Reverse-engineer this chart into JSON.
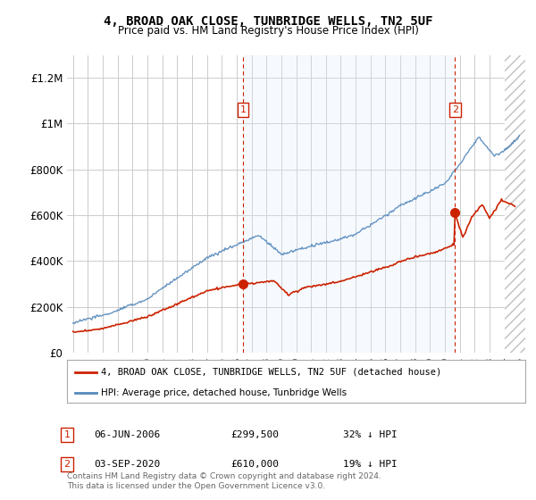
{
  "title": "4, BROAD OAK CLOSE, TUNBRIDGE WELLS, TN2 5UF",
  "subtitle": "Price paid vs. HM Land Registry's House Price Index (HPI)",
  "ylim": [
    0,
    1300000
  ],
  "yticks": [
    0,
    200000,
    400000,
    600000,
    800000,
    1000000,
    1200000
  ],
  "ytick_labels": [
    "£0",
    "£200K",
    "£400K",
    "£600K",
    "£800K",
    "£1M",
    "£1.2M"
  ],
  "hpi_color": "#5588bb",
  "price_color": "#cc2200",
  "vline_color": "#cc2200",
  "shade_color": "#ddeeff",
  "grid_color": "#cccccc",
  "background_color": "#ffffff",
  "transaction1_date": 2006.44,
  "transaction1_price": 299500,
  "transaction2_date": 2020.67,
  "transaction2_price": 610000,
  "legend_line1": "4, BROAD OAK CLOSE, TUNBRIDGE WELLS, TN2 5UF (detached house)",
  "legend_line2": "HPI: Average price, detached house, Tunbridge Wells",
  "annotation1_date": "06-JUN-2006",
  "annotation1_price": "£299,500",
  "annotation1_hpi": "32% ↓ HPI",
  "annotation2_date": "03-SEP-2020",
  "annotation2_price": "£610,000",
  "annotation2_hpi": "19% ↓ HPI",
  "footer": "Contains HM Land Registry data © Crown copyright and database right 2024.\nThis data is licensed under the Open Government Licence v3.0."
}
